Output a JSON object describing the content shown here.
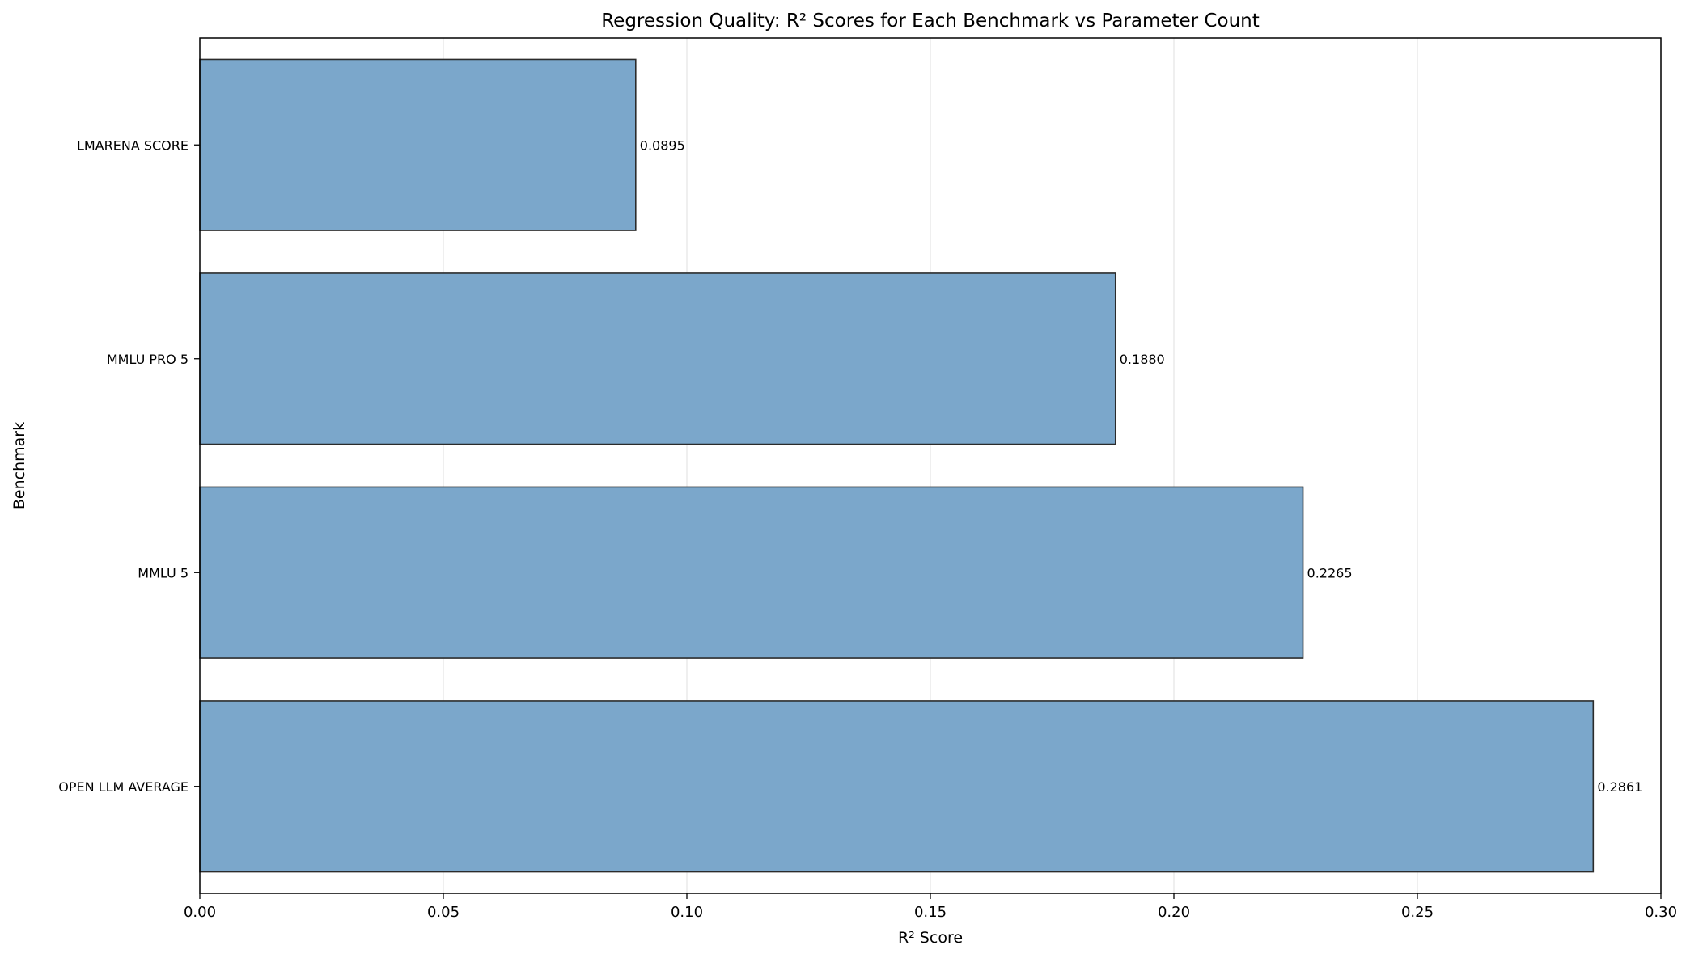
{
  "chart_data": {
    "type": "bar",
    "orientation": "horizontal",
    "title": "Regression Quality: R² Scores for Each Benchmark vs Parameter Count",
    "xlabel": "R² Score",
    "ylabel": "Benchmark",
    "categories": [
      "LMARENA SCORE",
      "MMLU PRO 5",
      "MMLU 5",
      "OPEN LLM AVERAGE"
    ],
    "values": [
      0.0895,
      0.188,
      0.2265,
      0.2861
    ],
    "data_labels": [
      "0.0895",
      "0.1880",
      "0.2265",
      "0.2861"
    ],
    "xlim": [
      0.0,
      0.3
    ],
    "xticks": [
      0.0,
      0.05,
      0.1,
      0.15,
      0.2,
      0.25,
      0.3
    ],
    "xtick_labels": [
      "0.00",
      "0.05",
      "0.10",
      "0.15",
      "0.20",
      "0.25",
      "0.30"
    ],
    "grid": "x-axis vertical lines",
    "legend": "none",
    "colors": {
      "bar_fill": "#7ba7cb",
      "bar_edge": "#2b2b2b",
      "grid": "#e6e6e6",
      "axis": "#000000"
    }
  }
}
